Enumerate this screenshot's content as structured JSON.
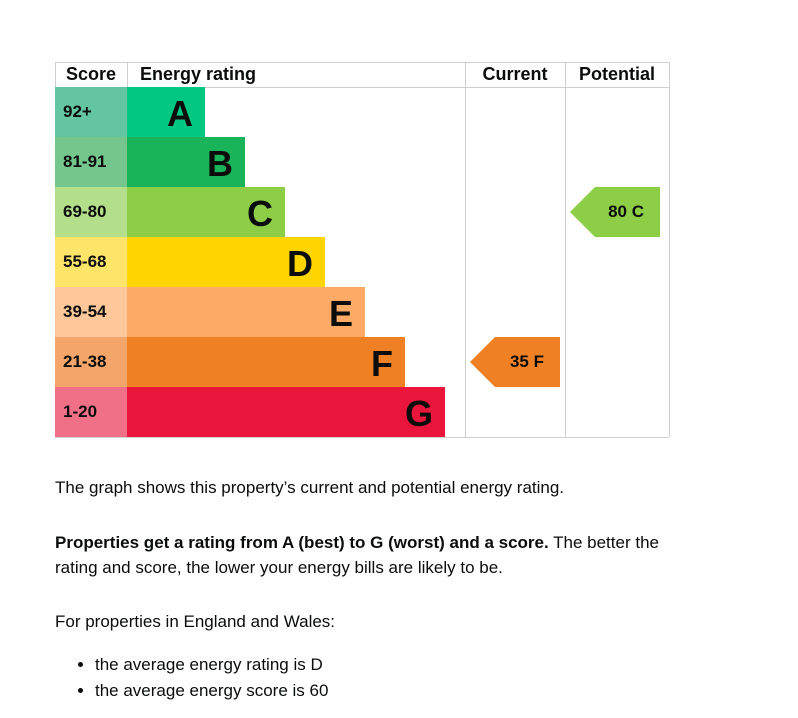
{
  "chart_data": {
    "type": "bar",
    "headers": {
      "score": "Score",
      "rating": "Energy rating",
      "current": "Current",
      "potential": "Potential"
    },
    "bands": [
      {
        "letter": "A",
        "range": "92+",
        "color": "#00c781",
        "score_color": "#63c6a0"
      },
      {
        "letter": "B",
        "range": "81-91",
        "color": "#19b459",
        "score_color": "#75c68c"
      },
      {
        "letter": "C",
        "range": "69-80",
        "color": "#8dce46",
        "score_color": "#b3df8a"
      },
      {
        "letter": "D",
        "range": "55-68",
        "color": "#ffd500",
        "score_color": "#ffe46a"
      },
      {
        "letter": "E",
        "range": "39-54",
        "color": "#fcaa65",
        "score_color": "#fdc79a"
      },
      {
        "letter": "F",
        "range": "21-38",
        "color": "#ef8023",
        "score_color": "#f4a66a"
      },
      {
        "letter": "G",
        "range": "1-20",
        "color": "#e9153b",
        "score_color": "#f07088"
      }
    ],
    "current": {
      "score": 35,
      "letter": "F",
      "label": "35  F"
    },
    "potential": {
      "score": 80,
      "letter": "C",
      "label": "80  C"
    }
  },
  "text": {
    "p1": "The graph shows this property’s current and potential energy rating.",
    "p2_bold": "Properties get a rating from A (best) to G (worst) and a score.",
    "p2_rest": " The better the rating and score, the lower your energy bills are likely to be.",
    "p3": "For properties in England and Wales:",
    "bullets": [
      "the average energy rating is D",
      "the average energy score is 60"
    ]
  }
}
